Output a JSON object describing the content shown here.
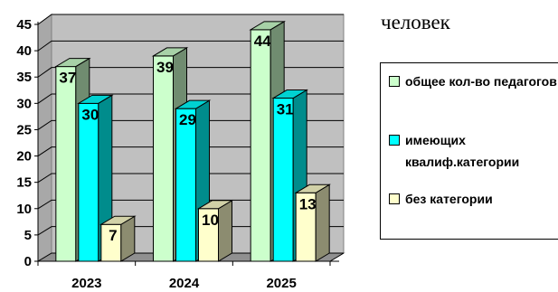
{
  "unit_label": "человек",
  "chart_data": {
    "type": "bar",
    "categories": [
      "2023",
      "2024",
      "2025"
    ],
    "series": [
      {
        "name": "общее кол-во педагогов",
        "values": [
          37,
          39,
          44
        ],
        "color": "#ccffcc"
      },
      {
        "name": "имеющих квалиф.категории",
        "values": [
          30,
          29,
          31
        ],
        "color": "#00ffff"
      },
      {
        "name": "без категории",
        "values": [
          7,
          10,
          13
        ],
        "color": "#ffffcc"
      }
    ],
    "ylim": [
      0,
      45
    ],
    "yticks": [
      "0",
      "5",
      "10",
      "15",
      "20",
      "25",
      "30",
      "35",
      "40",
      "45"
    ],
    "grid": true,
    "legend_position": "right",
    "three_d": true
  }
}
